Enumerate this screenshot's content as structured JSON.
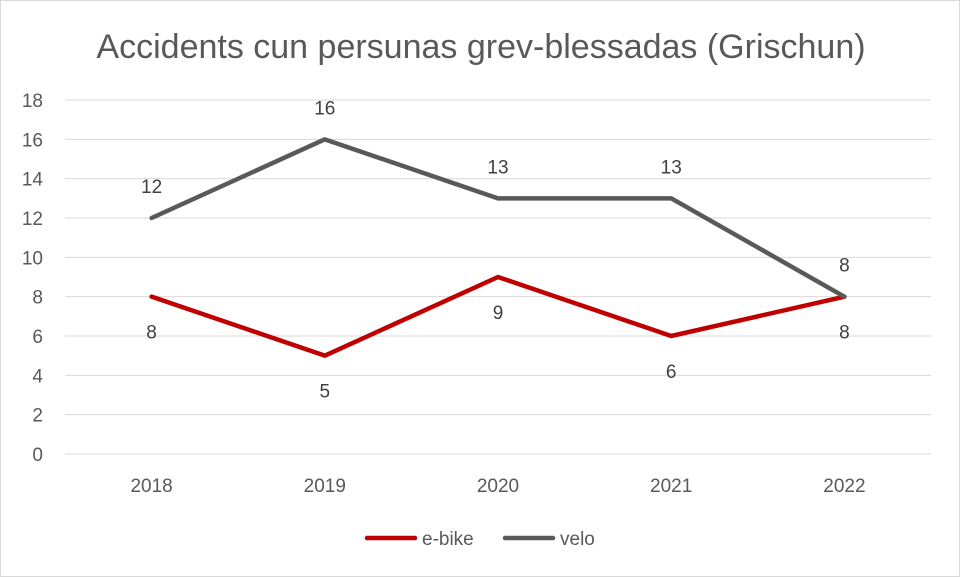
{
  "chart_data": {
    "type": "line",
    "title": "Accidents cun persunas grev-blessadas (Grischun)",
    "categories": [
      "2018",
      "2019",
      "2020",
      "2021",
      "2022"
    ],
    "ylim": [
      0,
      18
    ],
    "yticks": [
      0,
      2,
      4,
      6,
      8,
      10,
      12,
      14,
      16,
      18
    ],
    "grid": true,
    "legend_position": "bottom",
    "data_labels": true,
    "series": [
      {
        "name": "e-bike",
        "color": "#c00000",
        "values": [
          8,
          5,
          9,
          6,
          8
        ]
      },
      {
        "name": "velo",
        "color": "#595959",
        "values": [
          12,
          16,
          13,
          13,
          8
        ]
      }
    ]
  },
  "colors": {
    "gridline": "#d9d9d9",
    "text": "#595959",
    "frame": "#d9d9d9"
  }
}
